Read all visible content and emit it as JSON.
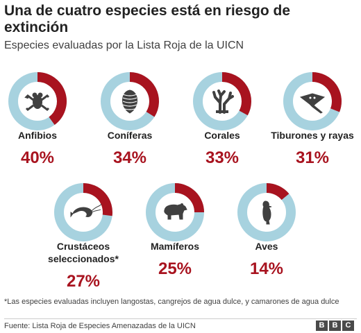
{
  "title": "Una de cuatro especies está en riesgo de extinción",
  "subtitle": "Especies evaluadas por la Lista Roja de la UICN",
  "footnote": "*Las especies evaluadas incluyen langostas, cangrejos de agua dulce, y camarones de agua dulce",
  "source": "Fuente: Lista Roja de Especies Amenazadas de la UICN",
  "logo": [
    "B",
    "B",
    "C"
  ],
  "colors": {
    "threatened": "#a8131f",
    "rest": "#a7d2df",
    "icon": "#404040"
  },
  "chart_data": {
    "type": "pie",
    "categories": [
      {
        "label": [
          "Anfibios"
        ],
        "percent_label": "40%",
        "value": 40,
        "icon": "frog-icon"
      },
      {
        "label": [
          "Coníferas"
        ],
        "percent_label": "34%",
        "value": 34,
        "icon": "pine-cone-icon"
      },
      {
        "label": [
          "Corales"
        ],
        "percent_label": "33%",
        "value": 33,
        "icon": "coral-icon"
      },
      {
        "label": [
          "Tiburones y rayas"
        ],
        "percent_label": "31%",
        "value": 31,
        "icon": "ray-icon"
      },
      {
        "label": [
          "Crustáceos",
          "seleccionados*"
        ],
        "percent_label": "27%",
        "value": 27,
        "icon": "shrimp-icon"
      },
      {
        "label": [
          "Mamíferos"
        ],
        "percent_label": "25%",
        "value": 25,
        "icon": "bear-icon"
      },
      {
        "label": [
          "Aves"
        ],
        "percent_label": "14%",
        "value": 14,
        "icon": "bird-icon"
      }
    ]
  }
}
